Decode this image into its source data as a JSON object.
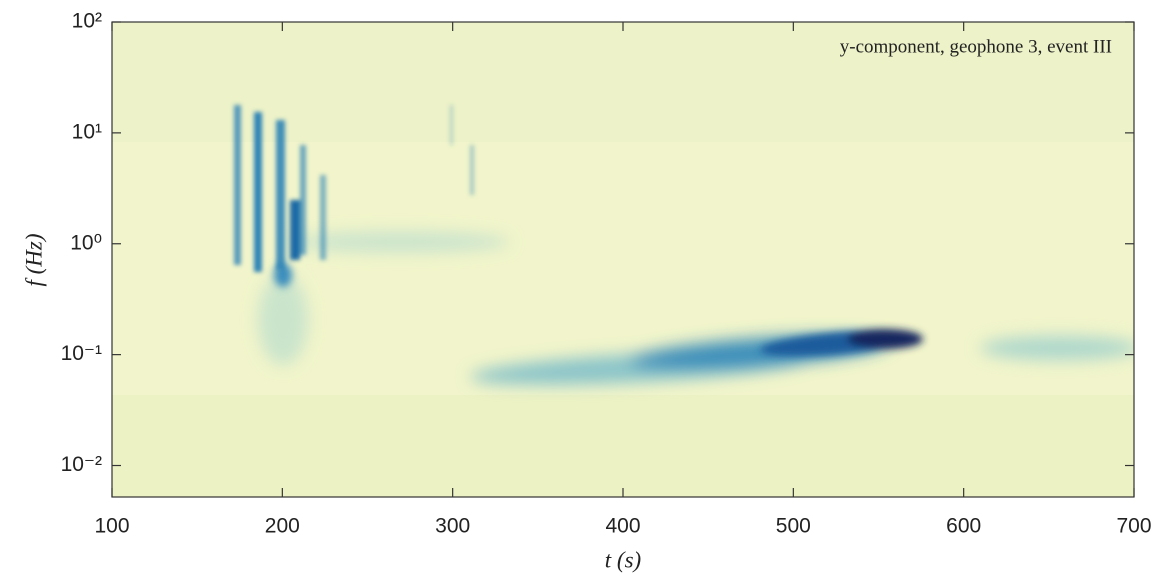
{
  "chart_data": {
    "type": "heatmap",
    "annotation": "y-component, geophone 3, event III",
    "x_label": "t (s)",
    "y_label": "f (Hz)",
    "xlim": [
      100,
      700
    ],
    "xticks": [
      100,
      200,
      300,
      400,
      500,
      600,
      700
    ],
    "ylim": [
      0.0052,
      100
    ],
    "yticks": [
      {
        "value": 0.01,
        "label": "10⁻²"
      },
      {
        "value": 0.1,
        "label": "10⁻¹"
      },
      {
        "value": 1,
        "label": "10⁰"
      },
      {
        "value": 10,
        "label": "10¹"
      },
      {
        "value": 100,
        "label": "10²"
      }
    ],
    "log_y": true,
    "background_color": "#f2f5cb"
  }
}
